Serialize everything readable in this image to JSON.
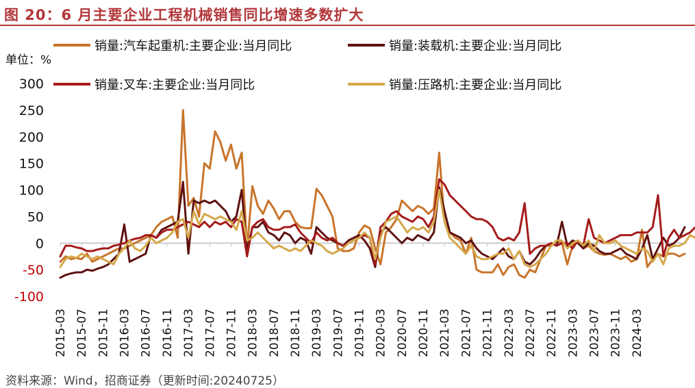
{
  "header": {
    "title": "图 20：6 月主要企业工程机械销售同比增速多数扩大"
  },
  "unit_label": "单位：%",
  "footer": {
    "source": "资料来源：Wind，招商证券（更新时间:20240725）"
  },
  "chart_data": {
    "type": "line",
    "title": "",
    "xlabel": "",
    "ylabel": "",
    "ylim": [
      -100,
      300
    ],
    "y_ticks": [
      -100,
      -50,
      0,
      50,
      100,
      150,
      200,
      250,
      300
    ],
    "grid": false,
    "legend_placement": "top",
    "start_month": "2015-03",
    "x_tick_labels": [
      "2015-03",
      "2015-07",
      "2015-11",
      "2016-03",
      "2016-07",
      "2016-11",
      "2017-03",
      "2017-07",
      "2017-11",
      "2018-03",
      "2018-07",
      "2018-11",
      "2019-03",
      "2019-07",
      "2019-11",
      "2020-03",
      "2020-07",
      "2020-11",
      "2021-03",
      "2021-07",
      "2021-11",
      "2022-03",
      "2022-07",
      "2022-11",
      "2023-03",
      "2023-07",
      "2023-11",
      "2024-03"
    ],
    "series": [
      {
        "name": "销量:汽车起重机:主要企业:当月同比",
        "color": "#c8742a",
        "values": [
          -35,
          -25,
          -30,
          -28,
          -30,
          -20,
          -35,
          -30,
          -25,
          -20,
          -15,
          -10,
          -10,
          -5,
          0,
          5,
          10,
          15,
          30,
          40,
          45,
          50,
          10,
          250,
          70,
          85,
          50,
          150,
          140,
          210,
          190,
          155,
          185,
          140,
          170,
          -10,
          107,
          70,
          55,
          80,
          65,
          45,
          60,
          60,
          40,
          30,
          28,
          28,
          102,
          90,
          70,
          50,
          -10,
          -15,
          -15,
          -10,
          20,
          33,
          28,
          -10,
          -40,
          20,
          30,
          45,
          80,
          70,
          60,
          70,
          65,
          55,
          65,
          170,
          40,
          20,
          10,
          5,
          -20,
          10,
          -50,
          -55,
          -55,
          -55,
          -40,
          -60,
          -45,
          -40,
          -60,
          -65,
          -50,
          -55,
          -30,
          -5,
          -5,
          5,
          0,
          -40,
          -5,
          5,
          -10,
          -5,
          -15,
          -20,
          -22,
          -20,
          -25,
          -30,
          -25,
          -35,
          -30,
          25,
          -45,
          -30,
          -20,
          -25,
          -20,
          -20,
          -25,
          -20
        ]
      },
      {
        "name": "销量:装载机:主要企业:当月同比",
        "color": "#5e1111",
        "values": [
          -65,
          -60,
          -57,
          -55,
          -55,
          -50,
          -52,
          -48,
          -45,
          -40,
          -30,
          -20,
          35,
          -35,
          -30,
          -25,
          -20,
          15,
          10,
          25,
          30,
          35,
          40,
          115,
          -20,
          80,
          75,
          80,
          75,
          80,
          70,
          60,
          40,
          50,
          100,
          -15,
          30,
          30,
          40,
          20,
          15,
          5,
          20,
          15,
          0,
          10,
          5,
          -20,
          30,
          20,
          10,
          5,
          0,
          -5,
          5,
          10,
          15,
          5,
          -10,
          -45,
          20,
          30,
          20,
          10,
          0,
          10,
          5,
          15,
          10,
          5,
          20,
          105,
          60,
          20,
          15,
          10,
          0,
          5,
          -10,
          -20,
          -25,
          -30,
          -20,
          -10,
          -25,
          -30,
          -15,
          -35,
          -40,
          -30,
          -15,
          -5,
          0,
          -5,
          40,
          -5,
          5,
          0,
          -10,
          0,
          -5,
          -15,
          -20,
          -20,
          -15,
          -10,
          -20,
          -25,
          -30,
          -10,
          15,
          -30,
          -10,
          10,
          -5,
          0,
          10,
          30
        ]
      },
      {
        "name": "销量:叉车:主要企业:当月同比",
        "color": "#a51b1b",
        "values": [
          -25,
          -5,
          -5,
          -8,
          -10,
          -15,
          -15,
          -12,
          -10,
          -10,
          -5,
          -3,
          0,
          5,
          8,
          10,
          15,
          15,
          10,
          20,
          25,
          25,
          30,
          35,
          40,
          35,
          30,
          40,
          30,
          40,
          35,
          40,
          30,
          45,
          40,
          -25,
          30,
          40,
          45,
          30,
          25,
          25,
          30,
          30,
          35,
          20,
          10,
          0,
          20,
          10,
          5,
          10,
          0,
          -5,
          0,
          5,
          10,
          15,
          10,
          -40,
          30,
          40,
          55,
          60,
          50,
          45,
          40,
          50,
          45,
          30,
          50,
          120,
          110,
          90,
          80,
          70,
          60,
          50,
          45,
          45,
          40,
          30,
          10,
          5,
          10,
          5,
          20,
          75,
          -20,
          -10,
          -5,
          -5,
          0,
          -5,
          0,
          0,
          -10,
          5,
          -5,
          45,
          10,
          5,
          0,
          5,
          10,
          15,
          15,
          15,
          20,
          20,
          20,
          30,
          90,
          -25,
          10,
          25,
          10,
          15,
          20,
          30
        ]
      },
      {
        "name": "销量:压路机:主要企业:当月同比",
        "color": "#d4a84a",
        "values": [
          -45,
          -30,
          -25,
          -28,
          -20,
          -25,
          -30,
          -25,
          -30,
          -35,
          -40,
          -20,
          -10,
          5,
          -10,
          -15,
          -5,
          10,
          0,
          5,
          10,
          20,
          40,
          45,
          10,
          60,
          35,
          55,
          50,
          45,
          50,
          45,
          40,
          25,
          60,
          5,
          10,
          20,
          10,
          0,
          -10,
          -5,
          -10,
          -15,
          -10,
          -15,
          -5,
          5,
          0,
          -5,
          -15,
          -20,
          -15,
          -10,
          0,
          5,
          10,
          20,
          10,
          -30,
          10,
          40,
          45,
          50,
          35,
          20,
          30,
          25,
          30,
          20,
          40,
          100,
          40,
          10,
          0,
          -10,
          -20,
          -5,
          -25,
          -30,
          -30,
          -25,
          -20,
          -20,
          -10,
          -30,
          -15,
          -40,
          -45,
          -40,
          -30,
          -20,
          -5,
          5,
          5,
          -10,
          0,
          5,
          -5,
          5,
          -15,
          15,
          0,
          0,
          5,
          -5,
          -10,
          -15,
          -20,
          -10,
          -15,
          -35,
          -20,
          -40,
          -10,
          -5,
          -5,
          0,
          15,
          10
        ]
      }
    ]
  }
}
